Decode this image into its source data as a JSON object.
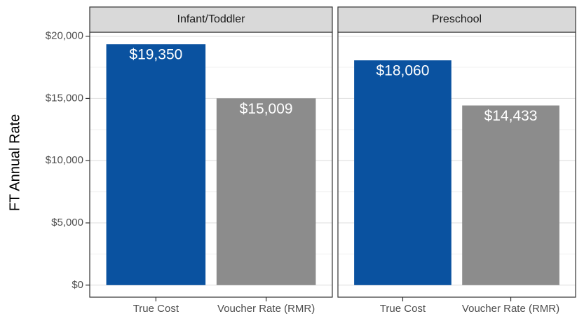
{
  "chart_data": [
    {
      "type": "bar",
      "title": "Infant/Toddler",
      "ylabel": "FT Annual Rate",
      "categories": [
        "True Cost",
        "Voucher Rate (RMR)"
      ],
      "values": [
        19350,
        15009
      ],
      "value_labels": [
        "$19,350",
        "$15,009"
      ],
      "colors": [
        "#0a52a0",
        "#8c8c8c"
      ],
      "ylim": [
        -967.5,
        20317.5
      ],
      "yticks": [
        {
          "value": 0,
          "label": "$0"
        },
        {
          "value": 5000,
          "label": "$5,000"
        },
        {
          "value": 10000,
          "label": "$10,000"
        },
        {
          "value": 15000,
          "label": "$15,000"
        },
        {
          "value": 20000,
          "label": "$20,000"
        }
      ],
      "minor_yticks": [
        2500,
        7500,
        12500,
        17500
      ],
      "grid": true
    },
    {
      "type": "bar",
      "title": "Preschool",
      "categories": [
        "True Cost",
        "Voucher Rate (RMR)"
      ],
      "values": [
        18060,
        14433
      ],
      "value_labels": [
        "$18,060",
        "$14,433"
      ],
      "colors": [
        "#0a52a0",
        "#8c8c8c"
      ]
    }
  ]
}
